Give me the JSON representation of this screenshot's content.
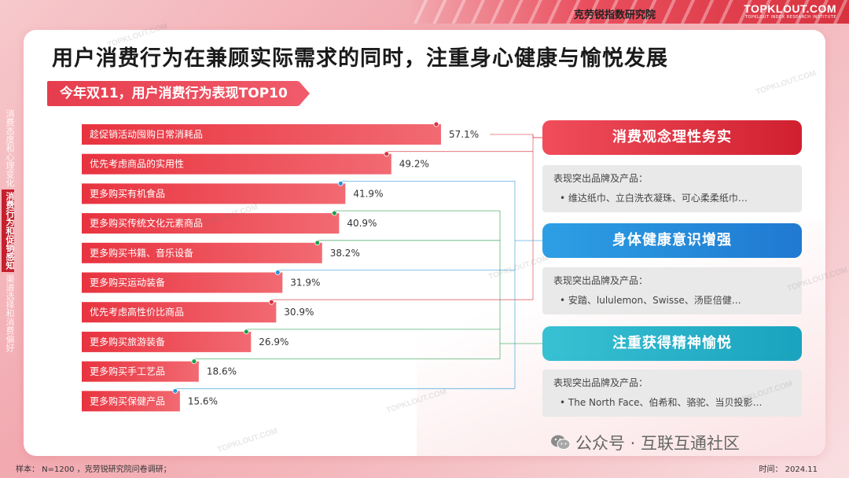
{
  "header": {
    "org_name": "克劳锐指数研究院",
    "logo": "TOPKLOUT.COM",
    "logo_sub": "TOPKLOUT INDEX RESEARCH INSTITUTE"
  },
  "side_tabs": [
    {
      "label": "消费态度和心理变化",
      "active": false
    },
    {
      "label": "消费行为和促销感知",
      "active": true
    },
    {
      "label": "渠道选择和消费偏好",
      "active": false
    }
  ],
  "title": "用户消费行为在兼顾实际需求的同时，注重身心健康与愉悦发展",
  "subtitle": "今年双11，用户消费行为表现TOP10",
  "chart_data": {
    "type": "bar",
    "orientation": "horizontal",
    "title": "今年双11，用户消费行为表现TOP10",
    "categories": [
      "趁促销活动囤购日常消耗品",
      "优先考虑商品的实用性",
      "更多购买有机食品",
      "更多购买传统文化元素商品",
      "更多购买书籍、音乐设备",
      "更多购买运动装备",
      "优先考虑高性价比商品",
      "更多购买旅游装备",
      "更多购买手工艺品",
      "更多购买保健产品"
    ],
    "values": [
      57.1,
      49.2,
      41.9,
      40.9,
      38.2,
      31.9,
      30.9,
      26.9,
      18.6,
      15.6
    ],
    "value_labels": [
      "57.1%",
      "49.2%",
      "41.9%",
      "40.9%",
      "38.2%",
      "31.9%",
      "30.9%",
      "26.9%",
      "18.6%",
      "15.6%"
    ],
    "groups": [
      "practical",
      "practical",
      "health",
      "spirit",
      "spirit",
      "health",
      "practical",
      "spirit",
      "spirit",
      "health"
    ],
    "group_colors": {
      "practical": "#d8303f",
      "health": "#2a96d8",
      "spirit": "#1f9e4a"
    },
    "bar_color": "#e8434f",
    "unit": "%"
  },
  "categories_panel": [
    {
      "title": "消费观念理性务实",
      "header": "表现突出品牌及产品：",
      "items": "•  维达纸巾、立白洗衣凝珠、可心柔柔纸巾…"
    },
    {
      "title": "身体健康意识增强",
      "header": "表现突出品牌及产品：",
      "items": "•  安踏、lululemon、Swisse、汤臣倍健…"
    },
    {
      "title": "注重获得精神愉悦",
      "header": "表现突出品牌及产品：",
      "items": "•  The North Face、伯希和、骆驼、当贝投影…"
    }
  ],
  "watermark_text": "TOPKLOUT.COM",
  "footer": {
    "note": "样本： N=1200 ，克劳锐研究院问卷调研；",
    "time": "时间： 2024.11",
    "wechat": "公众号 · 互联互通社区"
  }
}
